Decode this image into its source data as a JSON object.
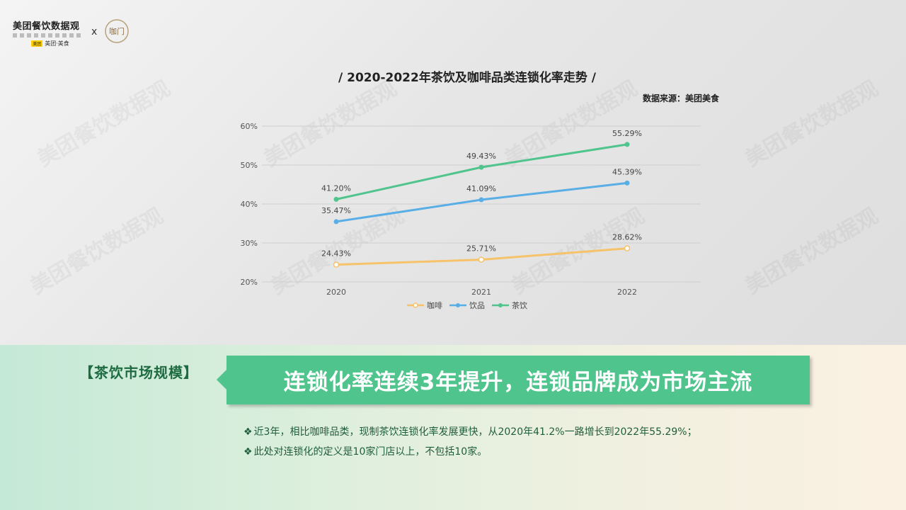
{
  "header": {
    "logo_title": "美团餐饮数据观",
    "logo_brand": "美团·美食",
    "logo_brand_tag": "美团",
    "cross": "x",
    "partner_badge": "咖门"
  },
  "watermark": "美团餐饮数据观",
  "chart_data": {
    "type": "line",
    "title": "/ 2020-2022年茶饮及咖啡品类连锁化率走势 /",
    "source": "数据来源：美团美食",
    "categories": [
      "2020",
      "2021",
      "2022"
    ],
    "ylim": [
      20,
      60
    ],
    "yticks": [
      "20%",
      "30%",
      "40%",
      "50%",
      "60%"
    ],
    "grid": true,
    "legend": "bottom",
    "series": [
      {
        "name": "咖啡",
        "color": "#f6c26a",
        "marker": "hollow",
        "values": [
          24.43,
          25.71,
          28.62
        ],
        "labels": [
          "24.43%",
          "25.71%",
          "28.62%"
        ]
      },
      {
        "name": "饮品",
        "color": "#5aaee6",
        "marker": "filled",
        "values": [
          35.47,
          41.09,
          45.39
        ],
        "labels": [
          "35.47%",
          "41.09%",
          "45.39%"
        ]
      },
      {
        "name": "茶饮",
        "color": "#4fc48c",
        "marker": "filled",
        "values": [
          41.2,
          49.43,
          55.29
        ],
        "labels": [
          "41.20%",
          "49.43%",
          "55.29%"
        ]
      }
    ]
  },
  "section": {
    "tag": "【茶饮市场规模】",
    "headline": "连锁化率连续3年提升，连锁品牌成为市场主流",
    "bullet_symbol": "❖",
    "bullets": [
      "近3年，相比咖啡品类，现制茶饮连锁化率发展更快，从2020年41.2%一路增长到2022年55.29%；",
      "此处对连锁化的定义是10家门店以上，不包括10家。"
    ]
  }
}
